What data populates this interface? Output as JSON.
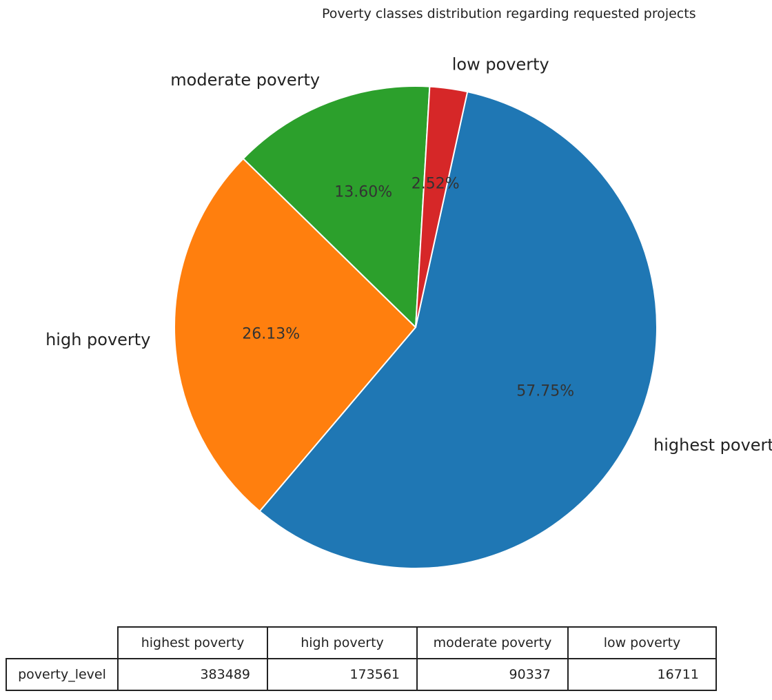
{
  "chart_data": {
    "type": "pie",
    "title": "Poverty classes distribution regarding requested projects",
    "categories": [
      "highest poverty",
      "high poverty",
      "moderate poverty",
      "low poverty"
    ],
    "values": [
      383489,
      173561,
      90337,
      16711
    ],
    "percent_labels": [
      "57.75%",
      "26.13%",
      "13.60%",
      "2.52%"
    ],
    "colors": [
      "#1f77b4",
      "#ff7f0e",
      "#2ca02c",
      "#d62728"
    ],
    "start_angle_deg": 77.6,
    "direction": "clockwise",
    "slice_edge_color": "#ffffff",
    "table": {
      "row_label": "poverty_level",
      "columns": [
        "highest poverty",
        "high poverty",
        "moderate poverty",
        "low poverty"
      ],
      "values": [
        "383489",
        "173561",
        "90337",
        "16711"
      ]
    }
  }
}
